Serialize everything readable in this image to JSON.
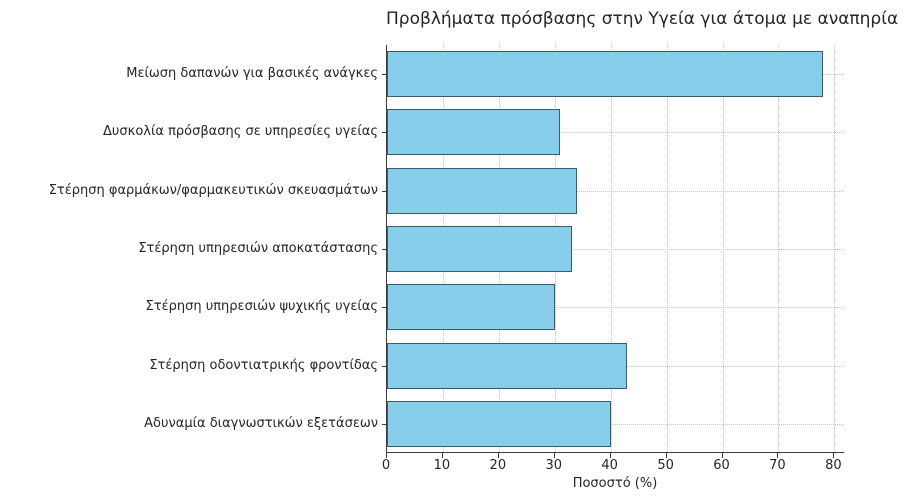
{
  "chart_data": {
    "type": "bar",
    "orientation": "horizontal",
    "title": "Προβλήματα πρόσβασης στην Υγεία για άτομα με αναπηρία",
    "categories": [
      "Μείωση δαπανών για βασικές ανάγκες",
      "Δυσκολία πρόσβασης σε υπηρεσίες υγείας",
      "Στέρηση φαρμάκων/φαρμακευτικών σκευασμάτων",
      "Στέρηση υπηρεσιών αποκατάστασης",
      "Στέρηση υπηρεσιών ψυχικής υγείας",
      "Στέρηση οδοντιατρικής φροντίδας",
      "Αδυναμία διαγνωστικών εξετάσεων"
    ],
    "values": [
      78,
      31,
      34,
      33,
      30,
      43,
      40
    ],
    "xlabel": "Ποσοστό (%)",
    "ylabel": "",
    "xlim": [
      0,
      81.9
    ],
    "xticks": [
      0,
      10,
      20,
      30,
      40,
      50,
      60,
      70,
      80
    ],
    "grid": true,
    "legend": false,
    "bar_color": "#87CEEB",
    "bar_edge_color": "#3a5a6e",
    "grid_color": "#c6c6c6",
    "axis_color": "#3c3c3c",
    "text_color": "#262626"
  }
}
